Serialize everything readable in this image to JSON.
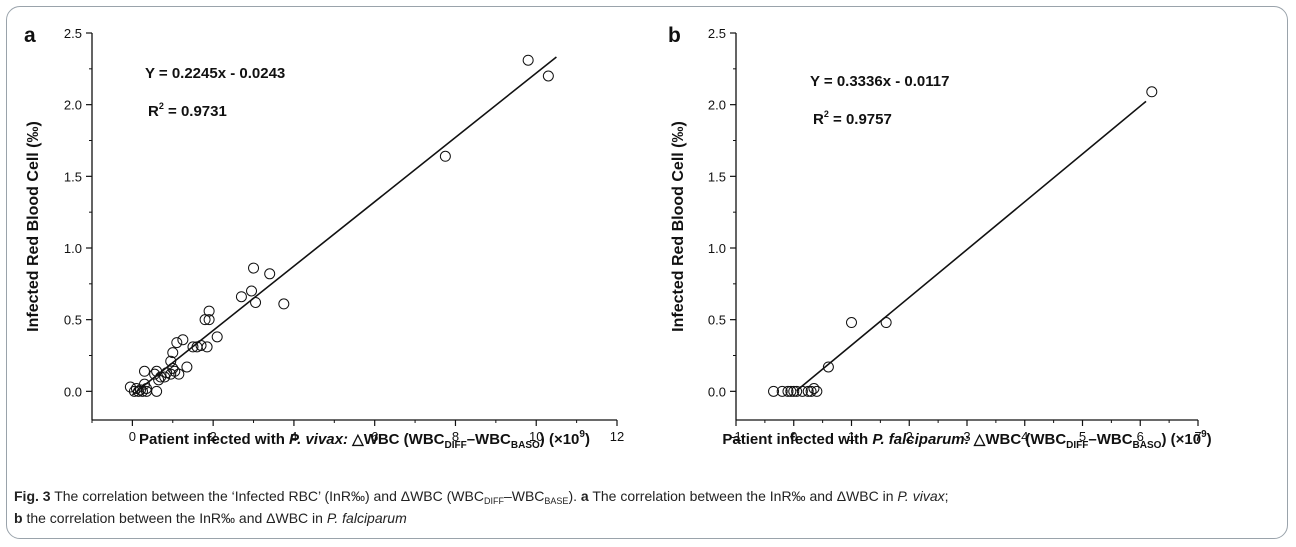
{
  "chart_data": [
    {
      "type": "scatter",
      "panel_label": "a",
      "xlabel_parts": [
        "Patient infected with ",
        "P. vivax:",
        " △WBC (WBC",
        "DIFF",
        "–WBC",
        "BASO",
        ") (×10",
        "9",
        ")"
      ],
      "ylabel": "Infected Red Blood Cell (‰)",
      "xlim": [
        -1,
        12
      ],
      "ylim": [
        -0.2,
        2.5
      ],
      "xticks": [
        0,
        2,
        4,
        6,
        8,
        10,
        12
      ],
      "yticks": [
        0.0,
        0.5,
        1.0,
        1.5,
        2.0,
        2.5
      ],
      "tick_labels_x": [
        "0",
        "2",
        "4",
        "6",
        "8",
        "10",
        "12"
      ],
      "tick_labels_y": [
        "0.0",
        "0.5",
        "1.0",
        "1.5",
        "2.0",
        "2.5"
      ],
      "equation": "Y = 0.2245x - 0.0243",
      "r2_prefix": "R",
      "r2_sup": "2",
      "r2_value": " = 0.9731",
      "fit": {
        "slope": 0.2245,
        "intercept": -0.0243,
        "x_range": [
          0.0,
          10.5
        ]
      },
      "points": [
        [
          -0.05,
          0.03
        ],
        [
          0.05,
          0.0
        ],
        [
          0.1,
          0.02
        ],
        [
          0.15,
          0.0
        ],
        [
          0.2,
          0.01
        ],
        [
          0.25,
          0.0
        ],
        [
          0.3,
          0.14
        ],
        [
          0.3,
          0.05
        ],
        [
          0.35,
          0.02
        ],
        [
          0.35,
          0.0
        ],
        [
          0.55,
          0.12
        ],
        [
          0.6,
          0.14
        ],
        [
          0.6,
          0.0
        ],
        [
          0.65,
          0.08
        ],
        [
          0.7,
          0.1
        ],
        [
          0.8,
          0.1
        ],
        [
          0.85,
          0.13
        ],
        [
          0.95,
          0.12
        ],
        [
          0.95,
          0.21
        ],
        [
          1.0,
          0.16
        ],
        [
          1.0,
          0.27
        ],
        [
          1.05,
          0.14
        ],
        [
          1.1,
          0.34
        ],
        [
          1.15,
          0.12
        ],
        [
          1.25,
          0.36
        ],
        [
          1.35,
          0.17
        ],
        [
          1.5,
          0.31
        ],
        [
          1.6,
          0.31
        ],
        [
          1.7,
          0.32
        ],
        [
          1.8,
          0.5
        ],
        [
          1.85,
          0.31
        ],
        [
          1.9,
          0.56
        ],
        [
          1.9,
          0.5
        ],
        [
          2.1,
          0.38
        ],
        [
          2.7,
          0.66
        ],
        [
          2.95,
          0.7
        ],
        [
          3.0,
          0.86
        ],
        [
          3.05,
          0.62
        ],
        [
          3.4,
          0.82
        ],
        [
          3.75,
          0.61
        ],
        [
          7.75,
          1.64
        ],
        [
          9.8,
          2.31
        ],
        [
          10.3,
          2.2
        ]
      ]
    },
    {
      "type": "scatter",
      "panel_label": "b",
      "xlabel_parts": [
        "Patient infected with ",
        "P. falciparum:",
        " △WBC (WBC",
        "DIFF",
        "–WBC",
        "BASO",
        ") (×10",
        "9",
        ")"
      ],
      "ylabel": "Infected Red Blood Cell (‰)",
      "xlim": [
        -1,
        7
      ],
      "ylim": [
        -0.2,
        2.5
      ],
      "xticks": [
        -1,
        0,
        1,
        2,
        3,
        4,
        5,
        6,
        7
      ],
      "yticks": [
        0.0,
        0.5,
        1.0,
        1.5,
        2.0,
        2.5
      ],
      "tick_labels_x": [
        "-1",
        "0",
        "1",
        "2",
        "3",
        "4",
        "5",
        "6",
        "7"
      ],
      "tick_labels_y": [
        "0.0",
        "0.5",
        "1.0",
        "1.5",
        "2.0",
        "2.5"
      ],
      "equation": "Y = 0.3336x - 0.0117",
      "r2_prefix": "R",
      "r2_sup": "2",
      "r2_value": " = 0.9757",
      "fit": {
        "slope": 0.3336,
        "intercept": -0.0117,
        "x_range": [
          0.05,
          6.1
        ]
      },
      "points": [
        [
          -0.35,
          0.0
        ],
        [
          -0.2,
          0.0
        ],
        [
          -0.1,
          0.0
        ],
        [
          -0.05,
          0.0
        ],
        [
          0.0,
          0.0
        ],
        [
          0.05,
          0.0
        ],
        [
          0.15,
          0.0
        ],
        [
          0.25,
          0.0
        ],
        [
          0.3,
          0.0
        ],
        [
          0.35,
          0.02
        ],
        [
          0.4,
          0.0
        ],
        [
          0.6,
          0.17
        ],
        [
          1.0,
          0.48
        ],
        [
          1.6,
          0.48
        ],
        [
          6.2,
          2.09
        ]
      ]
    }
  ],
  "caption": {
    "fig_label": "Fig. 3",
    "line1_text1": " The correlation between the ‘Infected RBC’ (InR‰) and ΔWBC (WBC",
    "line1_sub1": "DIFF",
    "line1_text2": "–WBC",
    "line1_sub2": "BASE",
    "line1_text3": "). ",
    "line1_a": "a",
    "line1_text4": " The correlation between the InR‰ and ΔWBC in ",
    "line1_species": "P. vivax",
    "line1_text5": ";",
    "line2_b": "b",
    "line2_text1": " the correlation between the InR‰ and ΔWBC in ",
    "line2_species": "P. falciparum"
  },
  "colors": {
    "frame": "#9aa3ab",
    "ink": "#111111",
    "caption_text": "#222222"
  }
}
